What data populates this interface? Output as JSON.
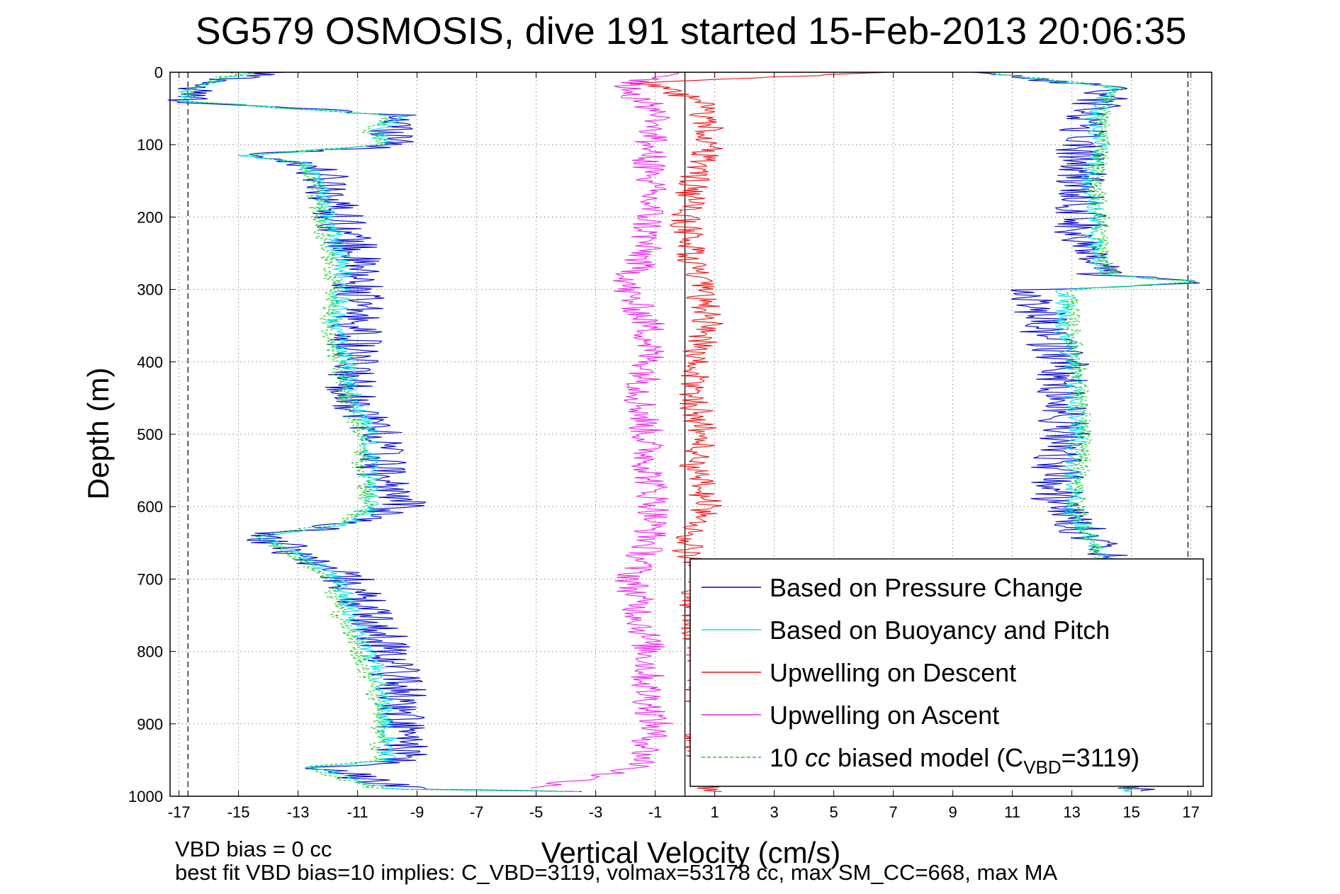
{
  "chart_data": {
    "type": "line",
    "title": "SG579 OSMOSIS, dive 191 started 15-Feb-2013 20:06:35",
    "xlabel": "Vertical Velocity (cm/s)",
    "ylabel": "Depth (m)",
    "xlim": [
      -17.3,
      17.7
    ],
    "ylim": [
      1000,
      0
    ],
    "y_reversed": true,
    "grid": true,
    "legend_position": "bottom-right",
    "x_ticks": [
      "-17",
      "-15",
      "-13",
      "-11",
      "-9",
      "-7",
      "-5",
      "-3",
      "-1",
      "1",
      "3",
      "5",
      "7",
      "9",
      "11",
      "13",
      "15",
      "17"
    ],
    "y_ticks": [
      "0",
      "100",
      "200",
      "300",
      "400",
      "500",
      "600",
      "700",
      "800",
      "900",
      "1000"
    ],
    "reference_lines": {
      "zero_line": 0,
      "dashed_limits": [
        -16.7,
        16.9
      ]
    },
    "legend": [
      {
        "label": "Based on Pressure Change",
        "color": "#0000cc",
        "dash": false
      },
      {
        "label": "Based on Buoyancy and Pitch",
        "color": "#00e5e5",
        "dash": false
      },
      {
        "label": "Upwelling on Descent",
        "color": "#ee1111",
        "dash": false
      },
      {
        "label": "Upwelling on Ascent",
        "color": "#ee22ee",
        "dash": false
      },
      {
        "label_prefix": "10 ",
        "label_italic": "cc",
        "label_mid": " biased model (C",
        "label_sub": "VBD",
        "label_suffix": "=3119)",
        "color": "#22cc22",
        "dash": true
      }
    ],
    "footer": [
      "VBD bias = 0 cc",
      "best fit VBD bias=10 implies: C_VBD=3119, volmax=53178 cc, max SM_CC=668, max MA"
    ],
    "series": [
      {
        "name": "Based on Pressure Change",
        "color": "#0000cc",
        "jitter": 0.9,
        "descent": [
          [
            0,
            -14
          ],
          [
            20,
            -16.5
          ],
          [
            40,
            -16.8
          ],
          [
            60,
            -9.5
          ],
          [
            80,
            -9.8
          ],
          [
            100,
            -9.3
          ],
          [
            115,
            -14.8
          ],
          [
            125,
            -12.8
          ],
          [
            150,
            -12
          ],
          [
            200,
            -11.6
          ],
          [
            250,
            -11.1
          ],
          [
            300,
            -11
          ],
          [
            350,
            -11
          ],
          [
            400,
            -11.2
          ],
          [
            450,
            -11.2
          ],
          [
            500,
            -10.2
          ],
          [
            550,
            -10.2
          ],
          [
            600,
            -9.5
          ],
          [
            625,
            -11.5
          ],
          [
            640,
            -14.2
          ],
          [
            665,
            -13
          ],
          [
            700,
            -11.3
          ],
          [
            750,
            -10.6
          ],
          [
            800,
            -9.9
          ],
          [
            850,
            -9.5
          ],
          [
            900,
            -9.5
          ],
          [
            950,
            -9.5
          ],
          [
            960,
            -12.2
          ],
          [
            990,
            -9.4
          ],
          [
            995,
            -1
          ]
        ],
        "ascent": [
          [
            995,
            15
          ],
          [
            900,
            14
          ],
          [
            800,
            14.2
          ],
          [
            700,
            14.5
          ],
          [
            660,
            14.3
          ],
          [
            620,
            13
          ],
          [
            600,
            12.5
          ],
          [
            550,
            12.5
          ],
          [
            500,
            12.8
          ],
          [
            450,
            12.6
          ],
          [
            400,
            12.7
          ],
          [
            350,
            12
          ],
          [
            300,
            11.8
          ],
          [
            290,
            17.4
          ],
          [
            280,
            14
          ],
          [
            250,
            13.3
          ],
          [
            200,
            13.3
          ],
          [
            150,
            13.3
          ],
          [
            100,
            13.3
          ],
          [
            60,
            13.6
          ],
          [
            20,
            14.3
          ],
          [
            5,
            11
          ],
          [
            0,
            10
          ]
        ]
      },
      {
        "name": "Based on Buoyancy and Pitch",
        "color": "#00e5e5",
        "jitter": 0.35,
        "descent": [
          [
            0,
            -14.5
          ],
          [
            20,
            -16.5
          ],
          [
            40,
            -16.8
          ],
          [
            60,
            -9.6
          ],
          [
            80,
            -10.4
          ],
          [
            100,
            -10
          ],
          [
            115,
            -14.8
          ],
          [
            125,
            -12.8
          ],
          [
            150,
            -12.2
          ],
          [
            200,
            -12
          ],
          [
            250,
            -11.6
          ],
          [
            300,
            -11.5
          ],
          [
            350,
            -11.8
          ],
          [
            400,
            -11.3
          ],
          [
            450,
            -11.2
          ],
          [
            500,
            -10.6
          ],
          [
            550,
            -10.6
          ],
          [
            600,
            -10.4
          ],
          [
            625,
            -11.5
          ],
          [
            640,
            -14.2
          ],
          [
            665,
            -13
          ],
          [
            700,
            -11.6
          ],
          [
            750,
            -11.2
          ],
          [
            800,
            -10.6
          ],
          [
            850,
            -10.2
          ],
          [
            900,
            -10
          ],
          [
            950,
            -10
          ],
          [
            960,
            -12.5
          ],
          [
            990,
            -10
          ],
          [
            995,
            -1
          ]
        ],
        "ascent": [
          [
            995,
            15
          ],
          [
            900,
            14
          ],
          [
            800,
            14.2
          ],
          [
            700,
            14.3
          ],
          [
            660,
            14
          ],
          [
            620,
            13.2
          ],
          [
            600,
            13
          ],
          [
            550,
            13.1
          ],
          [
            500,
            13.2
          ],
          [
            450,
            13.1
          ],
          [
            400,
            13
          ],
          [
            350,
            12.7
          ],
          [
            300,
            12.8
          ],
          [
            290,
            17.4
          ],
          [
            280,
            14.2
          ],
          [
            250,
            13.8
          ],
          [
            200,
            13.8
          ],
          [
            150,
            13.6
          ],
          [
            100,
            13.9
          ],
          [
            60,
            13.8
          ],
          [
            20,
            14.3
          ],
          [
            5,
            11
          ],
          [
            0,
            10
          ]
        ]
      },
      {
        "name": "Upwelling on Descent",
        "color": "#ee1111",
        "jitter": 0.55,
        "descent": [
          [
            0,
            7
          ],
          [
            5,
            4
          ],
          [
            15,
            -1.5
          ],
          [
            40,
            0.5
          ],
          [
            80,
            0.8
          ],
          [
            100,
            0.8
          ],
          [
            150,
            0.3
          ],
          [
            200,
            0
          ],
          [
            250,
            0.2
          ],
          [
            300,
            0.5
          ],
          [
            350,
            0.8
          ],
          [
            400,
            0.3
          ],
          [
            450,
            0.3
          ],
          [
            500,
            0.6
          ],
          [
            550,
            0.3
          ],
          [
            600,
            0.8
          ],
          [
            650,
            0
          ],
          [
            700,
            0.5
          ],
          [
            750,
            0.3
          ],
          [
            800,
            0.5
          ],
          [
            850,
            0.5
          ],
          [
            900,
            0.5
          ],
          [
            950,
            0.5
          ],
          [
            995,
            1
          ]
        ],
        "ascent": []
      },
      {
        "name": "Upwelling on Ascent",
        "color": "#ee22ee",
        "jitter": 0.6,
        "descent": [],
        "ascent": [
          [
            990,
            -5
          ],
          [
            960,
            -1.5
          ],
          [
            900,
            -1
          ],
          [
            850,
            -1.3
          ],
          [
            800,
            -1.2
          ],
          [
            750,
            -1.5
          ],
          [
            700,
            -1.8
          ],
          [
            650,
            -1.2
          ],
          [
            600,
            -1
          ],
          [
            550,
            -1.2
          ],
          [
            500,
            -1.3
          ],
          [
            450,
            -1.5
          ],
          [
            400,
            -1.2
          ],
          [
            350,
            -1.2
          ],
          [
            300,
            -2
          ],
          [
            250,
            -1.4
          ],
          [
            200,
            -1.2
          ],
          [
            150,
            -1.2
          ],
          [
            100,
            -1.2
          ],
          [
            60,
            -0.8
          ],
          [
            20,
            -2
          ],
          [
            0,
            -0.5
          ]
        ]
      },
      {
        "name": "10 cc biased model",
        "color": "#22cc22",
        "dash": true,
        "jitter": 0.3,
        "descent": [
          [
            0,
            -15
          ],
          [
            20,
            -16.5
          ],
          [
            40,
            -16.8
          ],
          [
            60,
            -9.8
          ],
          [
            80,
            -10.6
          ],
          [
            100,
            -10.2
          ],
          [
            115,
            -14.8
          ],
          [
            125,
            -13
          ],
          [
            150,
            -12.5
          ],
          [
            200,
            -12.3
          ],
          [
            250,
            -12
          ],
          [
            300,
            -11.8
          ],
          [
            350,
            -12
          ],
          [
            400,
            -11.7
          ],
          [
            450,
            -11.4
          ],
          [
            500,
            -10.9
          ],
          [
            550,
            -10.9
          ],
          [
            600,
            -10.6
          ],
          [
            625,
            -11.7
          ],
          [
            640,
            -14.4
          ],
          [
            665,
            -13.2
          ],
          [
            700,
            -11.9
          ],
          [
            750,
            -11.6
          ],
          [
            800,
            -11
          ],
          [
            850,
            -10.5
          ],
          [
            900,
            -10.3
          ],
          [
            950,
            -10.3
          ],
          [
            960,
            -12.8
          ],
          [
            990,
            -10.3
          ],
          [
            995,
            -1
          ]
        ],
        "ascent": [
          [
            995,
            15
          ],
          [
            900,
            13.8
          ],
          [
            800,
            14
          ],
          [
            700,
            14.2
          ],
          [
            660,
            13.8
          ],
          [
            620,
            13.4
          ],
          [
            600,
            13.2
          ],
          [
            550,
            13.3
          ],
          [
            500,
            13.4
          ],
          [
            450,
            13.3
          ],
          [
            400,
            13.2
          ],
          [
            350,
            13
          ],
          [
            300,
            13
          ],
          [
            290,
            17.2
          ],
          [
            280,
            14.3
          ],
          [
            250,
            14
          ],
          [
            200,
            14
          ],
          [
            150,
            13.8
          ],
          [
            100,
            14.1
          ],
          [
            60,
            14
          ],
          [
            20,
            14.5
          ],
          [
            5,
            11
          ],
          [
            0,
            10
          ]
        ]
      }
    ]
  }
}
